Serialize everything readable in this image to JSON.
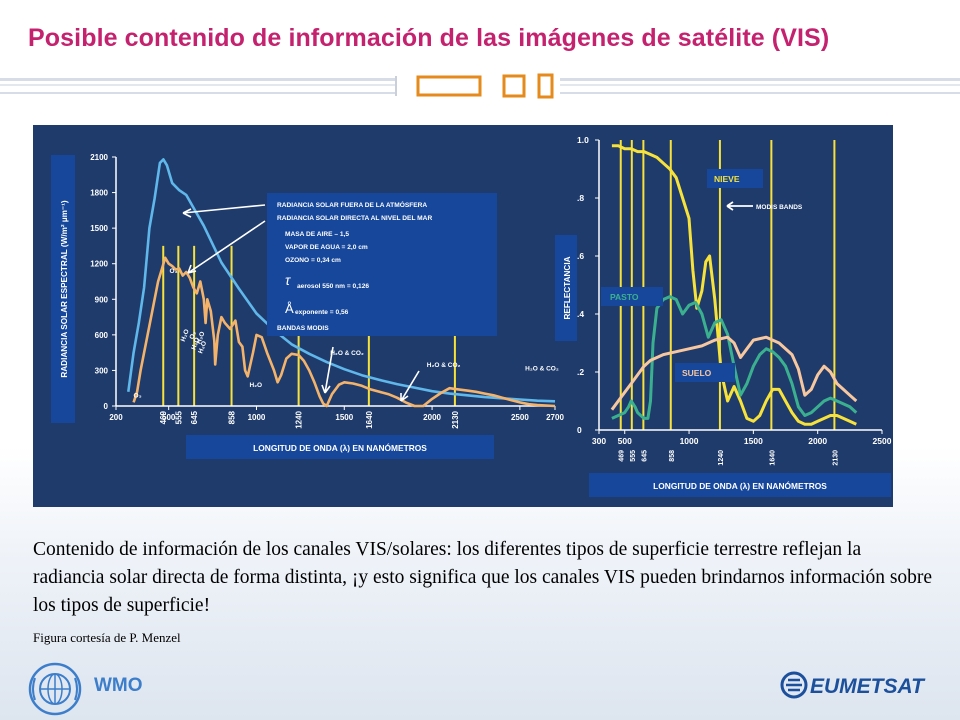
{
  "title": "Posible contenido de información de las imágenes de satélite (VIS)",
  "caption": "Contenido de información de los canales VIS/solares: los diferentes tipos de superficie terrestre reflejan la radiancia solar directa de forma distinta, ¡y esto significa que los canales VIS pueden brindarnos información sobre los tipos de superficie!",
  "credit": "Figura cortesía de P. Menzel",
  "footer": {
    "wmo": "WMO",
    "eumetsat": "EUMETSAT"
  },
  "colors": {
    "title": "#c4216f",
    "panel_bg": "#1f3b6b",
    "label_box": "#17479b",
    "blue_curve": "#5fb7ea",
    "orange_curve": "#f4b36b",
    "yellow": "#f6e23a",
    "green_curve": "#3bb08f",
    "peach_curve": "#f7c79f"
  },
  "chart_data": [
    {
      "type": "line",
      "ylabel": "RADIANCIA SOLAR ESPECTRAL (W/m² µm⁻¹)",
      "xlabel": "LONGITUD DE ONDA (λ) EN NANÓMETROS",
      "xlim": [
        200,
        2700
      ],
      "ylim": [
        0,
        2100
      ],
      "xticks": [
        200,
        500,
        1000,
        1500,
        2000,
        2500,
        2700
      ],
      "yticks": [
        0,
        300,
        600,
        900,
        1200,
        1500,
        1800,
        2100
      ],
      "band_ticks": [
        "469",
        "555",
        "645",
        "858",
        "1240",
        "1640",
        "2130"
      ],
      "bands": [
        469,
        555,
        645,
        858,
        1240,
        1640,
        2130
      ],
      "series": [
        {
          "name": "RADIANCIA SOLAR FUERA DE LA ATMÓSFERA",
          "x": [
            270,
            300,
            330,
            360,
            390,
            420,
            450,
            470,
            490,
            520,
            560,
            600,
            650,
            700,
            800,
            900,
            1000,
            1100,
            1200,
            1300,
            1400,
            1500,
            1600,
            1700,
            1800,
            1900,
            2000,
            2100,
            2200,
            2300,
            2400,
            2500,
            2600,
            2700
          ],
          "y": [
            120,
            450,
            700,
            1000,
            1500,
            1750,
            2050,
            2080,
            2030,
            1880,
            1820,
            1780,
            1650,
            1520,
            1210,
            990,
            780,
            640,
            520,
            440,
            370,
            310,
            260,
            220,
            185,
            155,
            125,
            105,
            90,
            75,
            65,
            55,
            45,
            40
          ]
        },
        {
          "name": "RADIANCIA SOLAR DIRECTA AL NIVEL DEL MAR",
          "x": [
            300,
            320,
            340,
            360,
            380,
            400,
            420,
            440,
            460,
            480,
            500,
            520,
            540,
            560,
            580,
            600,
            620,
            640,
            660,
            680,
            700,
            710,
            720,
            740,
            760,
            765,
            780,
            800,
            820,
            850,
            880,
            900,
            920,
            935,
            950,
            980,
            1000,
            1030,
            1060,
            1100,
            1120,
            1140,
            1170,
            1200,
            1240,
            1270,
            1300,
            1330,
            1360,
            1380,
            1400,
            1430,
            1470,
            1500,
            1550,
            1600,
            1650,
            1700,
            1750,
            1800,
            1850,
            1900,
            1950,
            2000,
            2050,
            2100,
            2150,
            2200,
            2250,
            2300,
            2350,
            2400,
            2450,
            2500,
            2550,
            2600,
            2650,
            2700
          ],
          "y": [
            30,
            120,
            300,
            450,
            600,
            750,
            900,
            1050,
            1150,
            1250,
            1200,
            1180,
            1150,
            1160,
            1100,
            1130,
            1080,
            1000,
            950,
            1050,
            900,
            700,
            900,
            800,
            550,
            350,
            600,
            750,
            700,
            650,
            720,
            540,
            500,
            300,
            250,
            450,
            600,
            580,
            450,
            300,
            200,
            260,
            400,
            440,
            430,
            380,
            300,
            200,
            80,
            20,
            0,
            100,
            180,
            200,
            190,
            170,
            140,
            120,
            100,
            70,
            30,
            0,
            0,
            60,
            110,
            150,
            140,
            130,
            120,
            105,
            90,
            70,
            50,
            30,
            15,
            8,
            4,
            0
          ]
        }
      ],
      "legend_lines": [
        "RADIANCIA SOLAR FUERA DE LA ATMÓSFERA",
        "RADIANCIA SOLAR DIRECTA AL NIVEL DEL MAR",
        "MASA DE AIRE – 1,5",
        "VAPOR DE AGUA = 2,0 cm",
        "OZONO = 0,34 cm",
        "aerosol 550 nm = 0,126",
        "exponente = 0,56",
        "BANDAS MODIS"
      ],
      "legend_symbols": {
        "tau": "τ",
        "angstrom": "Å"
      },
      "annotations": [
        {
          "text": "O₃",
          "x": 300,
          "y": 70
        },
        {
          "text": "O₃",
          "x": 505,
          "y": 1120
        },
        {
          "text": "H₂O",
          "x": 590,
          "y": 540
        },
        {
          "text": "O₂",
          "x": 640,
          "y": 560
        },
        {
          "text": "H₂O",
          "x": 680,
          "y": 520
        },
        {
          "text": "H₂O",
          "x": 650,
          "y": 470
        },
        {
          "text": "H₂O",
          "x": 690,
          "y": 440
        },
        {
          "text": "H₂O",
          "x": 960,
          "y": 160
        },
        {
          "text": "H₂O & CO₂",
          "x": 1420,
          "y": 430
        },
        {
          "text": "H₂O & CO₂",
          "x": 1970,
          "y": 330
        },
        {
          "text": "H₂O & CO₂",
          "x": 2530,
          "y": 300
        }
      ]
    },
    {
      "type": "line",
      "ylabel": "REFLECTANCIA",
      "xlabel": "LONGITUD DE ONDA (λ) EN NANÓMETROS",
      "xlim": [
        300,
        2500
      ],
      "ylim": [
        0,
        1.0
      ],
      "xticks": [
        300,
        500,
        1000,
        1500,
        2000,
        2500
      ],
      "yticks": [
        0,
        0.2,
        0.4,
        0.6,
        0.8,
        1.0
      ],
      "ytick_labels": [
        "0",
        ".2",
        ".4",
        ".6",
        ".8",
        "1.0"
      ],
      "band_ticks": [
        "469",
        "555",
        "645",
        "858",
        "1240",
        "1640",
        "2130"
      ],
      "bands": [
        469,
        555,
        645,
        858,
        1240,
        1640,
        2130
      ],
      "annotation": "MODIS BANDS",
      "series": [
        {
          "name": "NIEVE",
          "x": [
            400,
            450,
            500,
            550,
            600,
            650,
            700,
            750,
            800,
            850,
            900,
            950,
            1000,
            1030,
            1060,
            1100,
            1130,
            1160,
            1200,
            1250,
            1300,
            1350,
            1400,
            1450,
            1500,
            1550,
            1600,
            1650,
            1700,
            1750,
            1800,
            1850,
            1900,
            1950,
            2000,
            2050,
            2100,
            2150,
            2200,
            2250,
            2300
          ],
          "y": [
            0.98,
            0.98,
            0.97,
            0.97,
            0.96,
            0.96,
            0.95,
            0.94,
            0.92,
            0.9,
            0.87,
            0.8,
            0.73,
            0.55,
            0.42,
            0.48,
            0.58,
            0.6,
            0.45,
            0.2,
            0.1,
            0.15,
            0.1,
            0.04,
            0.03,
            0.05,
            0.1,
            0.14,
            0.14,
            0.1,
            0.06,
            0.03,
            0.02,
            0.02,
            0.03,
            0.04,
            0.05,
            0.05,
            0.04,
            0.03,
            0.02
          ]
        },
        {
          "name": "PASTO",
          "x": [
            400,
            450,
            500,
            530,
            550,
            580,
            600,
            650,
            680,
            700,
            720,
            750,
            800,
            850,
            900,
            950,
            1000,
            1050,
            1100,
            1150,
            1200,
            1250,
            1300,
            1350,
            1400,
            1450,
            1500,
            1550,
            1600,
            1650,
            1700,
            1750,
            1800,
            1850,
            1900,
            1950,
            2000,
            2050,
            2100,
            2150,
            2200,
            2250,
            2300
          ],
          "y": [
            0.04,
            0.05,
            0.06,
            0.08,
            0.1,
            0.08,
            0.06,
            0.04,
            0.04,
            0.1,
            0.3,
            0.42,
            0.45,
            0.46,
            0.45,
            0.4,
            0.43,
            0.44,
            0.4,
            0.32,
            0.37,
            0.38,
            0.33,
            0.22,
            0.12,
            0.16,
            0.22,
            0.26,
            0.28,
            0.27,
            0.25,
            0.22,
            0.16,
            0.08,
            0.05,
            0.06,
            0.08,
            0.1,
            0.11,
            0.1,
            0.09,
            0.08,
            0.06
          ]
        },
        {
          "name": "SUELO",
          "x": [
            400,
            450,
            500,
            550,
            600,
            650,
            700,
            800,
            900,
            1000,
            1100,
            1200,
            1300,
            1350,
            1400,
            1450,
            1500,
            1600,
            1700,
            1800,
            1850,
            1900,
            1950,
            2000,
            2050,
            2100,
            2150,
            2200,
            2250,
            2300
          ],
          "y": [
            0.07,
            0.1,
            0.13,
            0.16,
            0.19,
            0.22,
            0.24,
            0.26,
            0.27,
            0.28,
            0.29,
            0.31,
            0.32,
            0.3,
            0.25,
            0.28,
            0.31,
            0.32,
            0.3,
            0.26,
            0.21,
            0.12,
            0.14,
            0.19,
            0.22,
            0.2,
            0.16,
            0.14,
            0.12,
            0.1
          ]
        }
      ],
      "labels": {
        "nieve": "NIEVE",
        "pasto": "PASTO",
        "suelo": "SUELO"
      }
    }
  ]
}
